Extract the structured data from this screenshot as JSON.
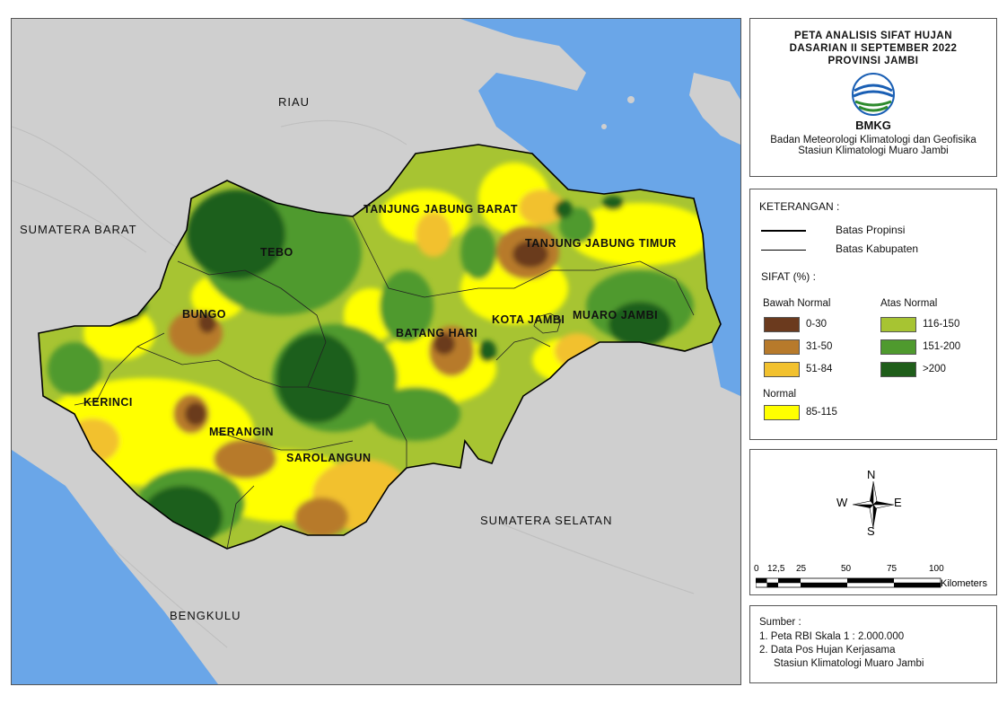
{
  "map": {
    "region_labels": {
      "riau": "RIAU",
      "sumbar": "SUMATERA BARAT",
      "sumsel": "SUMATERA SELATAN",
      "bengkulu": "BENGKULU"
    },
    "district_labels": {
      "tebo": "TEBO",
      "bungo": "BUNGO",
      "kerinci": "KERINCI",
      "merangin": "MERANGIN",
      "sarolangun": "SAROLANGUN",
      "batanghari": "BATANG HARI",
      "tjb": "TANJUNG JABUNG BARAT",
      "tjt": "TANJUNG JABUNG TIMUR",
      "kotajambi": "KOTA JAMBI",
      "muarojambi": "MUARO JAMBI"
    },
    "colors": {
      "sea": "#6aa6e8",
      "land": "#c9c9c9",
      "c0_30": "#6b3a1e",
      "c31_50": "#b77a2b",
      "c51_84": "#f2c12e",
      "c85_115": "#ffff00",
      "c116_150": "#a7c432",
      "c151_200": "#4f9a2e",
      "c200": "#1f5e1a"
    }
  },
  "title": {
    "line1": "PETA ANALISIS SIFAT HUJAN",
    "line2": "DASARIAN II SEPTEMBER 2022",
    "line3": "PROVINSI JAMBI",
    "logo_text": "BMKG",
    "agency": "Badan Meteorologi Klimatologi dan Geofisika",
    "station": "Stasiun Klimatologi Muaro Jambi"
  },
  "legend": {
    "heading": "KETERANGAN :",
    "province_border": "Batas Propinsi",
    "district_border": "Batas Kabupaten",
    "sifat_heading": "SIFAT (%) :",
    "below_heading": "Bawah Normal",
    "above_heading": "Atas Normal",
    "normal_heading": "Normal",
    "items": {
      "c0_30": "0-30",
      "c31_50": "31-50",
      "c51_84": "51-84",
      "c116_150": "116-150",
      "c151_200": "151-200",
      "c200": ">200",
      "c85_115": "85-115"
    }
  },
  "compass": {
    "n": "N",
    "s": "S",
    "e": "E",
    "w": "W"
  },
  "scale": {
    "ticks": [
      "0",
      "12,5",
      "25",
      "50",
      "75",
      "100"
    ],
    "unit": "Kilometers"
  },
  "source": {
    "heading": "Sumber :",
    "line1": "1. Peta RBI Skala 1 : 2.000.000",
    "line2": "2. Data Pos Hujan Kerjasama",
    "line3": "Stasiun Klimatologi Muaro Jambi"
  }
}
